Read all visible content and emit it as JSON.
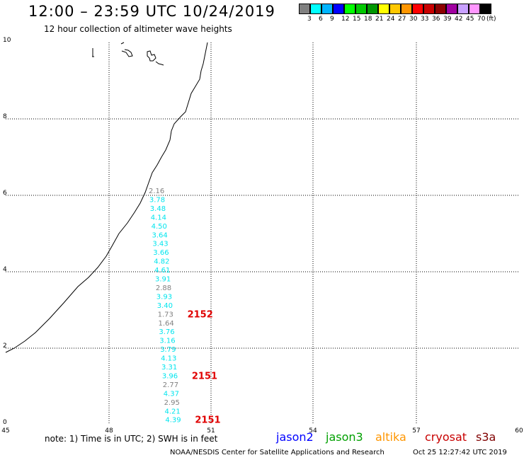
{
  "header": {
    "title": "12:00 – 23:59 UTC 10/24/2019",
    "subtitle": "12 hour collection of altimeter wave heights"
  },
  "legend": {
    "colors": [
      "#808080",
      "#00ffff",
      "#00b4ff",
      "#0000ff",
      "#00ff00",
      "#00c800",
      "#009600",
      "#ffff00",
      "#ffc800",
      "#ff9600",
      "#ff0000",
      "#c80000",
      "#8c0000",
      "#a000a0",
      "#c8a0ff",
      "#ff96ff",
      "#000000"
    ],
    "labels": [
      "3",
      "6",
      "9",
      "12",
      "15",
      "18",
      "21",
      "24",
      "27",
      "30",
      "33",
      "36",
      "39",
      "42",
      "45",
      "70",
      "(ft)"
    ]
  },
  "axes": {
    "x_ticks": [
      "45",
      "48",
      "51",
      "54",
      "57",
      "60"
    ],
    "y_ticks": [
      "0",
      "2",
      "4",
      "6",
      "8",
      "10"
    ]
  },
  "observations": [
    {
      "v": "2.16",
      "c": "#808080"
    },
    {
      "v": "3.78",
      "c": "#00e5ee"
    },
    {
      "v": "3.48",
      "c": "#00e5ee"
    },
    {
      "v": "4.14",
      "c": "#00e5ee"
    },
    {
      "v": "4.50",
      "c": "#00e5ee"
    },
    {
      "v": "3.64",
      "c": "#00e5ee"
    },
    {
      "v": "3.43",
      "c": "#00e5ee"
    },
    {
      "v": "3.66",
      "c": "#00e5ee"
    },
    {
      "v": "4.82",
      "c": "#00e5ee"
    },
    {
      "v": "4.61",
      "c": "#00e5ee"
    },
    {
      "v": "3.91",
      "c": "#00e5ee"
    },
    {
      "v": "2.88",
      "c": "#808080"
    },
    {
      "v": "3.93",
      "c": "#00e5ee"
    },
    {
      "v": "3.40",
      "c": "#00e5ee"
    },
    {
      "v": "1.73",
      "c": "#808080"
    },
    {
      "v": "1.64",
      "c": "#808080"
    },
    {
      "v": "3.76",
      "c": "#00e5ee"
    },
    {
      "v": "3.16",
      "c": "#00e5ee"
    },
    {
      "v": "3.79",
      "c": "#00e5ee"
    },
    {
      "v": "4.13",
      "c": "#00e5ee"
    },
    {
      "v": "3.31",
      "c": "#00e5ee"
    },
    {
      "v": "3.96",
      "c": "#00e5ee"
    },
    {
      "v": "2.77",
      "c": "#808080"
    },
    {
      "v": "4.37",
      "c": "#00e5ee"
    },
    {
      "v": "2.95",
      "c": "#808080"
    },
    {
      "v": "4.21",
      "c": "#00e5ee"
    },
    {
      "v": "4.39",
      "c": "#00e5ee"
    }
  ],
  "time_labels": [
    {
      "t": "2152",
      "after_index": 14
    },
    {
      "t": "2151",
      "after_index": 21
    },
    {
      "t": "2151",
      "after_index": 26
    }
  ],
  "time_label_color": "#e00000",
  "footer": {
    "note": "note:  1) Time is in UTC;  2) SWH is in feet",
    "satellites": [
      {
        "name": "jason2",
        "color": "#0000ff"
      },
      {
        "name": "jason3",
        "color": "#00a000"
      },
      {
        "name": "altika",
        "color": "#ff9600"
      },
      {
        "name": "cryosat",
        "color": "#c80000"
      },
      {
        "name": "s3a",
        "color": "#800000"
      }
    ],
    "credit": "NOAA/NESDIS Center for Satellite Applications and Research",
    "timestamp": "Oct 25 12:27:42 UTC 2019"
  }
}
